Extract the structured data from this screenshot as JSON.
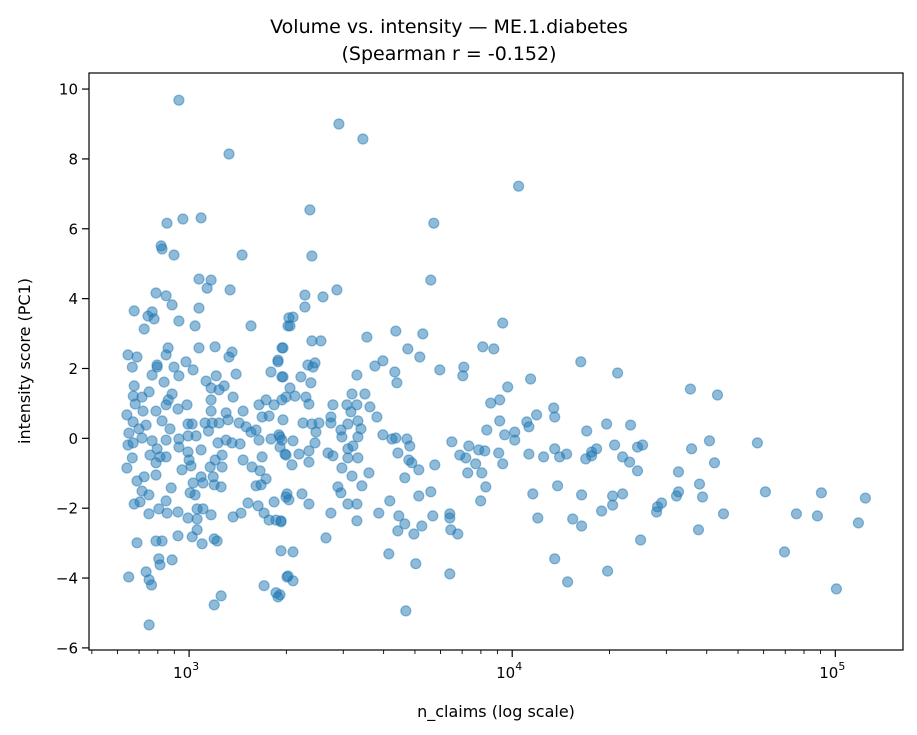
{
  "chart_data": {
    "type": "scatter",
    "title": "Volume vs. intensity — ME.1.diabetes",
    "subtitle": "(Spearman r = -0.152)",
    "xlabel": "n_claims (log scale)",
    "ylabel": "intensity score (PC1)",
    "x_scale": "log",
    "xlim": [
      490,
      162000
    ],
    "ylim": [
      -6.06,
      10.46
    ],
    "grid": false,
    "legend": "none",
    "color": "#1f77b4",
    "alpha": 0.5,
    "y_ticks": [
      {
        "value": -6,
        "label": "−6"
      },
      {
        "value": -4,
        "label": "−4"
      },
      {
        "value": -2,
        "label": "−2"
      },
      {
        "value": 0,
        "label": "0"
      },
      {
        "value": 2,
        "label": "2"
      },
      {
        "value": 4,
        "label": "4"
      },
      {
        "value": 6,
        "label": "6"
      },
      {
        "value": 8,
        "label": "8"
      },
      {
        "value": 10,
        "label": "10"
      }
    ],
    "x_ticks": [
      {
        "value": 1000,
        "base": "10",
        "exponent": "3"
      },
      {
        "value": 10000,
        "base": "10",
        "exponent": "4"
      },
      {
        "value": 100000,
        "base": "10",
        "exponent": "5"
      }
    ],
    "points": [
      [
        11400,
        1.7
      ],
      [
        16300,
        2.19
      ],
      [
        21200,
        1.87
      ],
      [
        35600,
        1.41
      ],
      [
        43200,
        1.24
      ],
      [
        13440,
        0.87
      ],
      [
        13540,
        0.61
      ],
      [
        11900,
        0.67
      ],
      [
        11100,
        0.47
      ],
      [
        11260,
        0.33
      ],
      [
        19600,
        0.41
      ],
      [
        23250,
        0.38
      ],
      [
        17000,
        0.21
      ],
      [
        40800,
        -0.07
      ],
      [
        57400,
        -0.13
      ],
      [
        35900,
        -0.3
      ],
      [
        20750,
        -0.19
      ],
      [
        24430,
        -0.25
      ],
      [
        25320,
        -0.19
      ],
      [
        18250,
        -0.3
      ],
      [
        17610,
        -0.39
      ],
      [
        16880,
        -0.59
      ],
      [
        17610,
        -0.5
      ],
      [
        11260,
        -0.45
      ],
      [
        12510,
        -0.53
      ],
      [
        13540,
        -0.3
      ],
      [
        14020,
        -0.53
      ],
      [
        14740,
        -0.45
      ],
      [
        21970,
        -0.53
      ],
      [
        23080,
        -0.68
      ],
      [
        24430,
        -0.93
      ],
      [
        42290,
        -0.7
      ],
      [
        32710,
        -0.96
      ],
      [
        37990,
        -1.31
      ],
      [
        11580,
        -1.59
      ],
      [
        13820,
        -1.36
      ],
      [
        16400,
        -1.62
      ],
      [
        20450,
        -1.65
      ],
      [
        21970,
        -1.59
      ],
      [
        20450,
        -1.91
      ],
      [
        18910,
        -2.08
      ],
      [
        32250,
        -1.65
      ],
      [
        32710,
        -1.53
      ],
      [
        38810,
        -1.68
      ],
      [
        60780,
        -1.53
      ],
      [
        90570,
        -1.56
      ],
      [
        123900,
        -1.71
      ],
      [
        28990,
        -1.85
      ],
      [
        27980,
        -2.11
      ],
      [
        28170,
        -1.96
      ],
      [
        45080,
        -2.16
      ],
      [
        75810,
        -2.16
      ],
      [
        88030,
        -2.22
      ],
      [
        117900,
        -2.42
      ],
      [
        12000,
        -2.28
      ],
      [
        15390,
        -2.31
      ],
      [
        16400,
        -2.51
      ],
      [
        37720,
        -2.62
      ],
      [
        24960,
        -2.91
      ],
      [
        69600,
        -3.25
      ],
      [
        13540,
        -3.45
      ],
      [
        19730,
        -3.8
      ],
      [
        14840,
        -4.11
      ],
      [
        100800,
        -4.31
      ],
      [
        10470,
        7.22
      ],
      [
        2283,
        4.1
      ],
      [
        2596,
        4.05
      ],
      [
        2867,
        4.25
      ],
      [
        2283,
        3.76
      ],
      [
        2097,
        3.47
      ],
      [
        2052,
        3.22
      ],
      [
        5599,
        4.53
      ],
      [
        9348,
        3.3
      ],
      [
        4364,
        3.07
      ],
      [
        5289,
        2.99
      ],
      [
        3550,
        2.9
      ],
      [
        2400,
        2.79
      ],
      [
        2559,
        2.79
      ],
      [
        1952,
        2.59
      ],
      [
        4753,
        2.56
      ],
      [
        5177,
        2.33
      ],
      [
        8107,
        2.62
      ],
      [
        8768,
        2.56
      ],
      [
        3979,
        2.22
      ],
      [
        3759,
        2.07
      ],
      [
        4333,
        1.9
      ],
      [
        4396,
        1.59
      ],
      [
        5968,
        1.96
      ],
      [
        7082,
        2.04
      ],
      [
        7031,
        1.79
      ],
      [
        2332,
        2.1
      ],
      [
        2452,
        2.16
      ],
      [
        2418,
        2.04
      ],
      [
        1952,
        1.76
      ],
      [
        2219,
        1.76
      ],
      [
        2383,
        1.59
      ],
      [
        3307,
        1.81
      ],
      [
        2052,
        1.44
      ],
      [
        1995,
        1.18
      ],
      [
        2127,
        1.21
      ],
      [
        2299,
        1.18
      ],
      [
        2349,
        0.98
      ],
      [
        9687,
        1.47
      ],
      [
        9149,
        1.1
      ],
      [
        8581,
        1.01
      ],
      [
        2787,
        0.96
      ],
      [
        3079,
        0.96
      ],
      [
        3192,
        1.27
      ],
      [
        3307,
        0.96
      ],
      [
        3169,
        0.76
      ],
      [
        3500,
        1.27
      ],
      [
        3627,
        0.9
      ],
      [
        3813,
        0.61
      ],
      [
        2748,
        0.61
      ],
      [
        1952,
        0.53
      ],
      [
        2251,
        0.44
      ],
      [
        2400,
        0.41
      ],
      [
        2523,
        0.44
      ],
      [
        2748,
        0.44
      ],
      [
        3101,
        0.41
      ],
      [
        3331,
        0.5
      ],
      [
        3401,
        0.27
      ],
      [
        2950,
        0.24
      ],
      [
        2469,
        0.18
      ],
      [
        2971,
        0.04
      ],
      [
        3331,
        0.04
      ],
      [
        3978,
        0.1
      ],
      [
        4242,
        -0.02
      ],
      [
        4364,
        0.01
      ],
      [
        4720,
        -0.02
      ],
      [
        4821,
        -0.22
      ],
      [
        1911,
        0.04
      ],
      [
        2097,
        -0.07
      ],
      [
        2452,
        -0.13
      ],
      [
        8342,
        0.24
      ],
      [
        9149,
        0.5
      ],
      [
        9482,
        0.1
      ],
      [
        10180,
        0.18
      ],
      [
        10180,
        -0.05
      ],
      [
        6502,
        -0.1
      ],
      [
        7338,
        -0.22
      ],
      [
        7878,
        -0.33
      ],
      [
        8224,
        -0.36
      ],
      [
        6882,
        -0.48
      ],
      [
        7183,
        -0.56
      ],
      [
        7712,
        -0.73
      ],
      [
        9084,
        -0.42
      ],
      [
        9348,
        -0.73
      ],
      [
        7283,
        -0.99
      ],
      [
        8050,
        -0.99
      ],
      [
        8282,
        -1.39
      ],
      [
        7992,
        -1.79
      ],
      [
        1911,
        -0.25
      ],
      [
        1981,
        -0.45
      ],
      [
        2188,
        -0.45
      ],
      [
        2349,
        -0.36
      ],
      [
        2349,
        -0.68
      ],
      [
        2082,
        -0.76
      ],
      [
        2690,
        -0.42
      ],
      [
        2787,
        -0.5
      ],
      [
        3101,
        -0.3
      ],
      [
        3214,
        -0.22
      ],
      [
        3331,
        -0.56
      ],
      [
        3101,
        -0.56
      ],
      [
        2971,
        -0.85
      ],
      [
        3192,
        -1.08
      ],
      [
        3601,
        -0.99
      ],
      [
        4427,
        -0.42
      ],
      [
        4787,
        -0.62
      ],
      [
        4890,
        -0.7
      ],
      [
        5140,
        -0.9
      ],
      [
        4653,
        -1.13
      ],
      [
        5762,
        -0.76
      ],
      [
        3426,
        -1.36
      ],
      [
        2887,
        -1.39
      ],
      [
        2950,
        -1.56
      ],
      [
        2009,
        -1.59
      ],
      [
        2037,
        -1.76
      ],
      [
        2235,
        -1.59
      ],
      [
        2349,
        -1.88
      ],
      [
        3101,
        -1.88
      ],
      [
        3307,
        -1.88
      ],
      [
        4181,
        -1.79
      ],
      [
        5140,
        -1.65
      ],
      [
        5599,
        -1.53
      ],
      [
        2748,
        -2.14
      ],
      [
        3866,
        -2.14
      ],
      [
        4457,
        -2.22
      ],
      [
        4653,
        -2.45
      ],
      [
        4426,
        -2.65
      ],
      [
        4962,
        -2.74
      ],
      [
        5252,
        -2.51
      ],
      [
        5680,
        -2.22
      ],
      [
        6409,
        -2.16
      ],
      [
        6409,
        -2.28
      ],
      [
        6455,
        -2.62
      ],
      [
        6784,
        -2.74
      ],
      [
        1925,
        -2.36
      ],
      [
        3307,
        -2.36
      ],
      [
        2652,
        -2.85
      ],
      [
        1925,
        -3.22
      ],
      [
        2097,
        -3.25
      ],
      [
        4151,
        -3.31
      ],
      [
        5032,
        -3.59
      ],
      [
        6409,
        -3.88
      ],
      [
        2023,
        -3.94
      ],
      [
        2097,
        -4.08
      ],
      [
        4686,
        -4.94
      ],
      [
        1911,
        -4.48
      ],
      [
        930,
        9.68
      ],
      [
        1329,
        8.14
      ],
      [
        854,
        6.16
      ],
      [
        957,
        6.28
      ],
      [
        1089,
        6.31
      ],
      [
        819,
        5.51
      ],
      [
        825,
        5.42
      ],
      [
        898,
        5.25
      ],
      [
        1459,
        5.25
      ],
      [
        1073,
        4.56
      ],
      [
        1170,
        4.53
      ],
      [
        1137,
        4.3
      ],
      [
        1339,
        4.25
      ],
      [
        790,
        4.16
      ],
      [
        849,
        4.08
      ],
      [
        886,
        3.82
      ],
      [
        676,
        3.65
      ],
      [
        746,
        3.5
      ],
      [
        768,
        3.62
      ],
      [
        779,
        3.42
      ],
      [
        726,
        3.13
      ],
      [
        930,
        3.36
      ],
      [
        1073,
        3.73
      ],
      [
        1044,
        3.22
      ],
      [
        1555,
        3.22
      ],
      [
        2037,
        3.45
      ],
      [
        647,
        2.39
      ],
      [
        690,
        2.33
      ],
      [
        861,
        2.59
      ],
      [
        849,
        2.39
      ],
      [
        1073,
        2.59
      ],
      [
        1204,
        2.62
      ],
      [
        1358,
        2.47
      ],
      [
        1329,
        2.33
      ],
      [
        1939,
        2.59
      ],
      [
        1884,
        2.24
      ],
      [
        2023,
        3.22
      ],
      [
        978,
        2.19
      ],
      [
        796,
        2.1
      ],
      [
        667,
        2.04
      ],
      [
        796,
        2.04
      ],
      [
        898,
        2.04
      ],
      [
        1029,
        1.96
      ],
      [
        768,
        1.81
      ],
      [
        930,
        1.79
      ],
      [
        837,
        1.61
      ],
      [
        676,
        1.5
      ],
      [
        752,
        1.33
      ],
      [
        672,
        1.21
      ],
      [
        715,
        1.18
      ],
      [
        886,
        1.27
      ],
      [
        862,
        1.1
      ],
      [
        849,
        0.96
      ],
      [
        681,
        0.98
      ],
      [
        720,
        0.78
      ],
      [
        642,
        0.67
      ],
      [
        790,
        0.78
      ],
      [
        924,
        0.84
      ],
      [
        985,
        0.96
      ],
      [
        671,
        0.47
      ],
      [
        736,
        0.38
      ],
      [
        825,
        0.5
      ],
      [
        873,
        0.27
      ],
      [
        651,
        0.15
      ],
      [
        700,
        0.27
      ],
      [
        715,
        0.01
      ],
      [
        647,
        -0.19
      ],
      [
        671,
        -0.13
      ],
      [
        768,
        -0.07
      ],
      [
        849,
        -0.05
      ],
      [
        930,
        -0.02
      ],
      [
        930,
        -0.25
      ],
      [
        992,
        0.41
      ],
      [
        1022,
        0.41
      ],
      [
        992,
        0.07
      ],
      [
        1051,
        0.07
      ],
      [
        1089,
        -0.33
      ],
      [
        796,
        -0.3
      ],
      [
        757,
        -0.48
      ],
      [
        813,
        -0.53
      ],
      [
        849,
        -0.53
      ],
      [
        667,
        -0.56
      ],
      [
        790,
        -0.7
      ],
      [
        642,
        -0.85
      ],
      [
        992,
        -0.39
      ],
      [
        1000,
        -0.62
      ],
      [
        1014,
        -0.79
      ],
      [
        951,
        -0.9
      ],
      [
        726,
        -1.1
      ],
      [
        690,
        -1.22
      ],
      [
        790,
        -1.05
      ],
      [
        715,
        -1.51
      ],
      [
        751,
        -1.62
      ],
      [
        676,
        -1.88
      ],
      [
        705,
        -1.82
      ],
      [
        880,
        -1.42
      ],
      [
        1007,
        -1.56
      ],
      [
        1044,
        -1.62
      ],
      [
        1089,
        -1.1
      ],
      [
        1104,
        -1.28
      ],
      [
        1187,
        -1.1
      ],
      [
        1196,
        -1.33
      ],
      [
        1256,
        -1.39
      ],
      [
        1029,
        -1.28
      ],
      [
        751,
        -2.16
      ],
      [
        806,
        -2.02
      ],
      [
        849,
        -1.79
      ],
      [
        855,
        -2.14
      ],
      [
        924,
        -2.11
      ],
      [
        992,
        -2.28
      ],
      [
        1059,
        -2.02
      ],
      [
        1104,
        -2.02
      ],
      [
        1059,
        -2.31
      ],
      [
        1170,
        -2.19
      ],
      [
        1059,
        -2.62
      ],
      [
        1022,
        -2.82
      ],
      [
        1097,
        -3.02
      ],
      [
        924,
        -2.79
      ],
      [
        1196,
        -2.88
      ],
      [
        1221,
        -2.94
      ],
      [
        690,
        -2.99
      ],
      [
        790,
        -2.94
      ],
      [
        825,
        -2.94
      ],
      [
        806,
        -3.45
      ],
      [
        813,
        -3.62
      ],
      [
        886,
        -3.48
      ],
      [
        650,
        -3.97
      ],
      [
        736,
        -3.82
      ],
      [
        752,
        -4.05
      ],
      [
        765,
        -4.2
      ],
      [
        1256,
        -4.51
      ],
      [
        1196,
        -4.77
      ],
      [
        752,
        -5.34
      ],
      [
        1129,
        1.64
      ],
      [
        1213,
        1.79
      ],
      [
        1170,
        1.44
      ],
      [
        1238,
        1.39
      ],
      [
        1284,
        1.5
      ],
      [
        1170,
        1.1
      ],
      [
        1368,
        1.18
      ],
      [
        1398,
        1.84
      ],
      [
        1170,
        0.78
      ],
      [
        1302,
        0.73
      ],
      [
        1469,
        0.78
      ],
      [
        1120,
        0.44
      ],
      [
        1179,
        0.44
      ],
      [
        1238,
        0.44
      ],
      [
        1320,
        0.53
      ],
      [
        1148,
        0.21
      ],
      [
        1229,
        -0.13
      ],
      [
        1302,
        -0.05
      ],
      [
        1358,
        -0.13
      ],
      [
        1438,
        -0.16
      ],
      [
        1265,
        -0.48
      ],
      [
        1204,
        -0.62
      ],
      [
        1265,
        -0.82
      ],
      [
        1162,
        -0.82
      ],
      [
        1469,
        -0.62
      ],
      [
        1566,
        -0.82
      ],
      [
        1658,
        -0.93
      ],
      [
        1731,
        -1.16
      ],
      [
        1612,
        -1.36
      ],
      [
        1670,
        -1.33
      ],
      [
        1682,
        -0.53
      ],
      [
        1428,
        0.44
      ],
      [
        1501,
        0.33
      ],
      [
        1555,
        0.18
      ],
      [
        1612,
        0.24
      ],
      [
        1646,
        -0.05
      ],
      [
        1793,
        -0.02
      ],
      [
        1897,
        0.1
      ],
      [
        1938,
        -0.05
      ],
      [
        1995,
        -0.48
      ],
      [
        1646,
        0.96
      ],
      [
        1731,
        1.1
      ],
      [
        1832,
        0.96
      ],
      [
        1938,
        1.1
      ],
      [
        1682,
        0.61
      ],
      [
        1768,
        0.64
      ],
      [
        1793,
        1.9
      ],
      [
        1938,
        1.76
      ],
      [
        1884,
        2.19
      ],
      [
        1522,
        -1.85
      ],
      [
        1635,
        -1.93
      ],
      [
        1706,
        -2.14
      ],
      [
        1768,
        -2.34
      ],
      [
        1858,
        -2.34
      ],
      [
        1925,
        -2.39
      ],
      [
        1368,
        -2.25
      ],
      [
        1448,
        -2.14
      ],
      [
        1832,
        -1.82
      ],
      [
        1995,
        -1.68
      ],
      [
        1706,
        -4.22
      ],
      [
        1858,
        -4.42
      ],
      [
        1884,
        -4.54
      ],
      [
        2009,
        -3.97
      ],
      [
        5718,
        6.16
      ],
      [
        2908,
        9.0
      ],
      [
        3450,
        8.57
      ],
      [
        2366,
        6.54
      ],
      [
        2400,
        5.22
      ]
    ]
  }
}
